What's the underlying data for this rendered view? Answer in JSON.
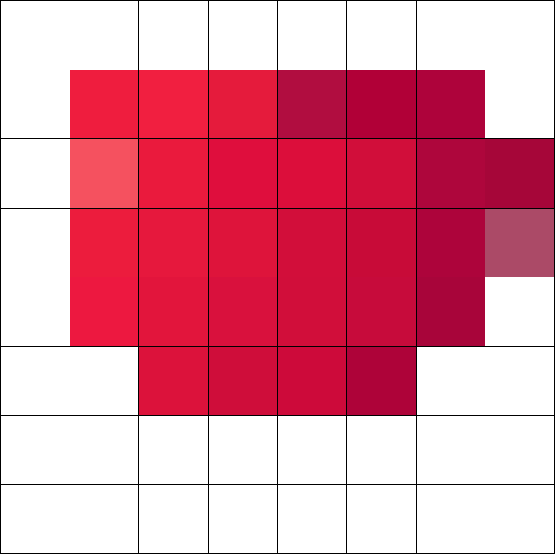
{
  "grid": {
    "columns": 8,
    "rows": 8,
    "line_color": "#000000",
    "empty_color": "#ffffff",
    "cells": [
      [
        "#ffffff",
        "#ffffff",
        "#ffffff",
        "#ffffff",
        "#ffffff",
        "#ffffff",
        "#ffffff",
        "#ffffff"
      ],
      [
        "#ffffff",
        "#ef1d3e",
        "#f11f40",
        "#e51b3c",
        "#b10d40",
        "#b10037",
        "#ae033b",
        "#ffffff"
      ],
      [
        "#ffffff",
        "#f5515f",
        "#ea1a3d",
        "#df0e3d",
        "#dc0e3b",
        "#d10e3a",
        "#ae063c",
        "#a60639"
      ],
      [
        "#ffffff",
        "#ec1c3d",
        "#e6183d",
        "#de143b",
        "#d20e3a",
        "#c80b38",
        "#ad043b",
        "#ab4a67"
      ],
      [
        "#ffffff",
        "#ed1840",
        "#e2153c",
        "#d9113d",
        "#d10e3a",
        "#c70b3b",
        "#a8053a",
        "#ffffff"
      ],
      [
        "#ffffff",
        "#ffffff",
        "#dc123b",
        "#cf0d3a",
        "#cd0a3a",
        "#ae0339",
        "#ffffff",
        "#ffffff"
      ],
      [
        "#ffffff",
        "#ffffff",
        "#ffffff",
        "#ffffff",
        "#ffffff",
        "#ffffff",
        "#ffffff",
        "#ffffff"
      ],
      [
        "#ffffff",
        "#ffffff",
        "#ffffff",
        "#ffffff",
        "#ffffff",
        "#ffffff",
        "#ffffff",
        "#ffffff"
      ]
    ]
  }
}
